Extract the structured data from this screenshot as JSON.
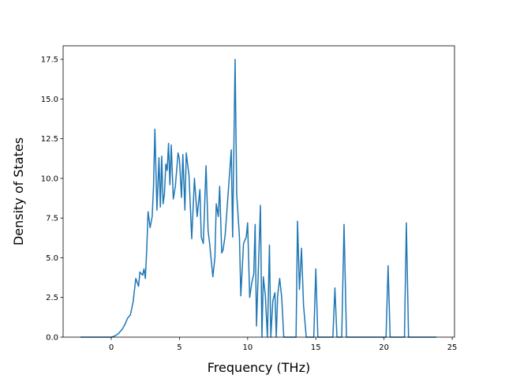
{
  "chart_data": {
    "type": "line",
    "xlabel": "Frequency (THz)",
    "ylabel": "Density of States",
    "color": "#1f77b4",
    "x": [
      -2.26,
      -1.5,
      -1.0,
      -0.5,
      0.0,
      0.2,
      0.5,
      0.8,
      1.0,
      1.2,
      1.4,
      1.6,
      1.8,
      2.0,
      2.1,
      2.3,
      2.4,
      2.5,
      2.6,
      2.7,
      2.85,
      3.0,
      3.1,
      3.2,
      3.35,
      3.5,
      3.6,
      3.7,
      3.8,
      3.9,
      4.0,
      4.1,
      4.2,
      4.3,
      4.4,
      4.55,
      4.7,
      4.9,
      5.0,
      5.15,
      5.25,
      5.4,
      5.5,
      5.7,
      5.9,
      6.1,
      6.3,
      6.5,
      6.6,
      6.75,
      6.95,
      7.1,
      7.2,
      7.45,
      7.6,
      7.7,
      7.85,
      7.95,
      8.1,
      8.2,
      8.35,
      8.8,
      8.9,
      9.08,
      9.2,
      9.4,
      9.5,
      9.7,
      9.9,
      10.0,
      10.15,
      10.3,
      10.45,
      10.55,
      10.65,
      10.94,
      11.05,
      11.15,
      11.3,
      11.45,
      11.6,
      11.7,
      11.85,
      12.0,
      12.1,
      12.2,
      12.35,
      12.5,
      12.65,
      13.55,
      13.66,
      13.8,
      13.95,
      14.1,
      14.3,
      14.85,
      15.0,
      15.15,
      16.25,
      16.4,
      16.55,
      16.9,
      17.07,
      17.25,
      20.15,
      20.3,
      20.45,
      21.5,
      21.64,
      21.8,
      23.84
    ],
    "values": [
      0,
      0,
      0,
      0,
      0,
      0.05,
      0.2,
      0.5,
      0.8,
      1.2,
      1.4,
      2.2,
      3.7,
      3.2,
      4.1,
      3.9,
      4.3,
      3.7,
      5.5,
      7.9,
      6.9,
      7.6,
      9.5,
      13.1,
      8.0,
      11.3,
      8.2,
      11.4,
      8.4,
      9.0,
      10.9,
      10.5,
      12.2,
      9.6,
      12.1,
      8.7,
      9.5,
      11.6,
      11.2,
      8.8,
      11.5,
      8.0,
      11.6,
      10.2,
      6.2,
      10.0,
      7.6,
      9.3,
      6.3,
      5.9,
      10.8,
      6.7,
      6.0,
      3.8,
      5.0,
      8.4,
      7.6,
      9.5,
      5.3,
      5.5,
      6.4,
      11.8,
      6.3,
      17.5,
      9.0,
      6.3,
      2.6,
      5.9,
      6.3,
      7.2,
      2.5,
      3.4,
      4.0,
      7.1,
      0.7,
      8.3,
      0,
      3.8,
      2.6,
      0,
      5.8,
      0,
      2.3,
      2.8,
      0,
      2.6,
      3.7,
      2.5,
      0,
      0,
      7.3,
      3.0,
      5.6,
      2.0,
      0,
      0,
      4.3,
      0,
      0,
      3.1,
      0,
      0,
      7.1,
      0,
      0,
      4.5,
      0,
      0,
      7.2,
      0,
      0
    ],
    "xlim": [
      -3.53,
      25.17
    ],
    "ylim": [
      0,
      18.35
    ],
    "xticks": [
      0,
      5,
      10,
      15,
      20,
      25
    ],
    "yticks": [
      {
        "value": 0,
        "label": "0.0"
      },
      {
        "value": 2.5,
        "label": "2.5"
      },
      {
        "value": 5,
        "label": "5.0"
      },
      {
        "value": 7.5,
        "label": "7.5"
      },
      {
        "value": 10,
        "label": "10.0"
      },
      {
        "value": 12.5,
        "label": "12.5"
      },
      {
        "value": 15,
        "label": "15.0"
      },
      {
        "value": 17.5,
        "label": "17.5"
      }
    ]
  }
}
